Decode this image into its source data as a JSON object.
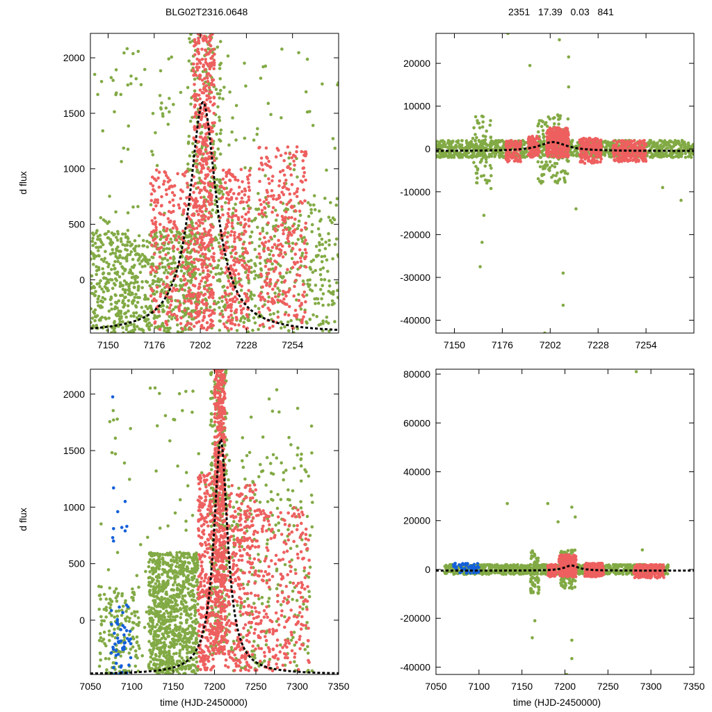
{
  "figure": {
    "title_left": "BLG02T2316.0648",
    "title_right": "2351   17.39   0.03   841"
  },
  "colors": {
    "green": "#82aa45",
    "red": "#ee5f5f",
    "blue": "#1560d8",
    "model": "#000000"
  },
  "chart_data": [
    {
      "type": "scatter",
      "panel": "top-left",
      "title": "BLG02T2316.0648",
      "xlabel": "",
      "ylabel": "d flux",
      "xlim": [
        7140,
        7280
      ],
      "ylim": [
        -480,
        2220
      ],
      "xticks": [
        7150,
        7176,
        7202,
        7228,
        7254
      ],
      "yticks": [
        0,
        500,
        1000,
        1500,
        2000
      ],
      "model": {
        "t0": 7203.5,
        "peak": 1600,
        "base": -480,
        "tau": 9
      },
      "series": [
        {
          "name": "green points",
          "color": "green",
          "count": 1500,
          "clusters": [
            [
              7140,
              7200,
              -480,
              450,
              700
            ],
            [
              7195,
              7214,
              -300,
              2220,
              250
            ],
            [
              7210,
              7280,
              -480,
              700,
              350
            ],
            [
              7140,
              7280,
              -480,
              2100,
              200
            ]
          ]
        },
        {
          "name": "red points",
          "color": "red",
          "count": 1300,
          "clusters": [
            [
              7198,
              7210,
              -450,
              2220,
              500
            ],
            [
              7174,
              7198,
              -450,
              1000,
              250
            ],
            [
              7213,
              7230,
              -450,
              1000,
              250
            ],
            [
              7235,
              7262,
              -450,
              1200,
              300
            ]
          ]
        }
      ]
    },
    {
      "type": "scatter",
      "panel": "top-right",
      "title": "2351   17.39   0.03   841",
      "xlabel": "",
      "ylabel": "",
      "xlim": [
        7140,
        7280
      ],
      "ylim": [
        -43000,
        27000
      ],
      "xticks": [
        7150,
        7176,
        7202,
        7228,
        7254
      ],
      "yticks": [
        -40000,
        -30000,
        -20000,
        -10000,
        0,
        10000,
        20000
      ],
      "model": {
        "t0": 7203.5,
        "peak": 1600,
        "base": -480,
        "tau": 9
      },
      "series": [
        {
          "name": "green points",
          "color": "green",
          "count": 1300,
          "clusters": [
            [
              7140,
              7280,
              -2000,
              2000,
              1100
            ],
            [
              7160,
              7170,
              -10000,
              8000,
              60
            ],
            [
              7195,
              7212,
              -8000,
              8000,
              140
            ]
          ],
          "outliers": [
            [
              7164,
              -27500
            ],
            [
              7165,
              -21800
            ],
            [
              7166,
              -15500
            ],
            [
              7179,
              27000
            ],
            [
              7191,
              19500
            ],
            [
              7199,
              -43000
            ],
            [
              7207,
              25500
            ],
            [
              7209,
              -29000
            ],
            [
              7209,
              -36500
            ],
            [
              7212,
              21500
            ],
            [
              7212,
              14500
            ],
            [
              7216,
              -14000
            ],
            [
              7263,
              -9000
            ],
            [
              7273,
              -12000
            ]
          ]
        },
        {
          "name": "red points",
          "color": "red",
          "count": 900,
          "clusters": [
            [
              7178,
              7186,
              -3000,
              2000,
              100
            ],
            [
              7190,
              7196,
              -2000,
              3000,
              80
            ],
            [
              7200,
              7212,
              -2000,
              5000,
              300
            ],
            [
              7218,
              7230,
              -3500,
              2500,
              180
            ],
            [
              7236,
              7254,
              -3000,
              2000,
              220
            ]
          ]
        }
      ]
    },
    {
      "type": "scatter",
      "panel": "bottom-left",
      "title": "",
      "xlabel": "time (HJD-2450000)",
      "ylabel": "d flux",
      "xlim": [
        7050,
        7350
      ],
      "ylim": [
        -480,
        2220
      ],
      "xticks": [
        7050,
        7100,
        7150,
        7200,
        7250,
        7300,
        7350
      ],
      "yticks": [
        0,
        500,
        1000,
        1500,
        2000
      ],
      "model": {
        "t0": 7207.5,
        "peak": 1600,
        "base": -480,
        "tau": 10
      },
      "series": [
        {
          "name": "green points",
          "color": "green",
          "count": 1700,
          "clusters": [
            [
              7060,
              7110,
              -480,
              300,
              150
            ],
            [
              7120,
              7180,
              -480,
              600,
              900
            ],
            [
              7195,
              7215,
              -300,
              2220,
              300
            ],
            [
              7215,
              7320,
              -480,
              1500,
              200
            ],
            [
              7060,
              7320,
              -480,
              2100,
              150
            ]
          ]
        },
        {
          "name": "red points",
          "color": "red",
          "count": 1400,
          "clusters": [
            [
              7200,
              7213,
              -300,
              2220,
              550
            ],
            [
              7180,
              7200,
              -450,
              1300,
              300
            ],
            [
              7213,
              7250,
              -450,
              1200,
              300
            ],
            [
              7250,
              7315,
              -450,
              1000,
              250
            ]
          ]
        },
        {
          "name": "blue points",
          "color": "blue",
          "count": 60,
          "points": [
            [
              7077,
              1975
            ],
            [
              7078,
              1170
            ],
            [
              7078,
              810
            ],
            [
              7077,
              730
            ],
            [
              7078,
              700
            ],
            [
              7083,
              960
            ],
            [
              7088,
              820
            ],
            [
              7092,
              1050
            ],
            [
              7094,
              830
            ],
            [
              7092,
              790
            ]
          ],
          "clusters": [
            [
              7075,
              7100,
              -480,
              150,
              50
            ]
          ]
        }
      ]
    },
    {
      "type": "scatter",
      "panel": "bottom-right",
      "title": "",
      "xlabel": "time (HJD-2450000)",
      "ylabel": "",
      "xlim": [
        7050,
        7350
      ],
      "ylim": [
        -43000,
        82000
      ],
      "xticks": [
        7050,
        7100,
        7150,
        7200,
        7250,
        7300,
        7350
      ],
      "yticks": [
        -40000,
        -20000,
        0,
        20000,
        40000,
        60000,
        80000
      ],
      "model": {
        "t0": 7207.5,
        "peak": 1600,
        "base": -480,
        "tau": 10
      },
      "series": [
        {
          "name": "green points",
          "color": "green",
          "count": 1400,
          "clusters": [
            [
              7060,
              7320,
              -2000,
              2000,
              1100
            ],
            [
              7160,
              7170,
              -10000,
              8000,
              60
            ],
            [
              7195,
              7212,
              -8000,
              8000,
              140
            ]
          ],
          "outliers": [
            [
              7133,
              27000
            ],
            [
              7162,
              -28000
            ],
            [
              7165,
              -21000
            ],
            [
              7180,
              27000
            ],
            [
              7192,
              19500
            ],
            [
              7202,
              -43000
            ],
            [
              7208,
              25500
            ],
            [
              7208,
              -29000
            ],
            [
              7208,
              -36500
            ],
            [
              7212,
              21500
            ],
            [
              7283,
              81000
            ],
            [
              7290,
              8000
            ]
          ]
        },
        {
          "name": "red points",
          "color": "red",
          "count": 800,
          "clusters": [
            [
              7180,
              7190,
              -3000,
              2000,
              100
            ],
            [
              7193,
              7213,
              -3000,
              6000,
              300
            ],
            [
              7223,
              7245,
              -3000,
              2500,
              200
            ],
            [
              7280,
              7315,
              -3500,
              2000,
              200
            ]
          ]
        },
        {
          "name": "blue points",
          "color": "blue",
          "count": 60,
          "clusters": [
            [
              7070,
              7100,
              -1500,
              2500,
              60
            ]
          ]
        }
      ]
    }
  ]
}
